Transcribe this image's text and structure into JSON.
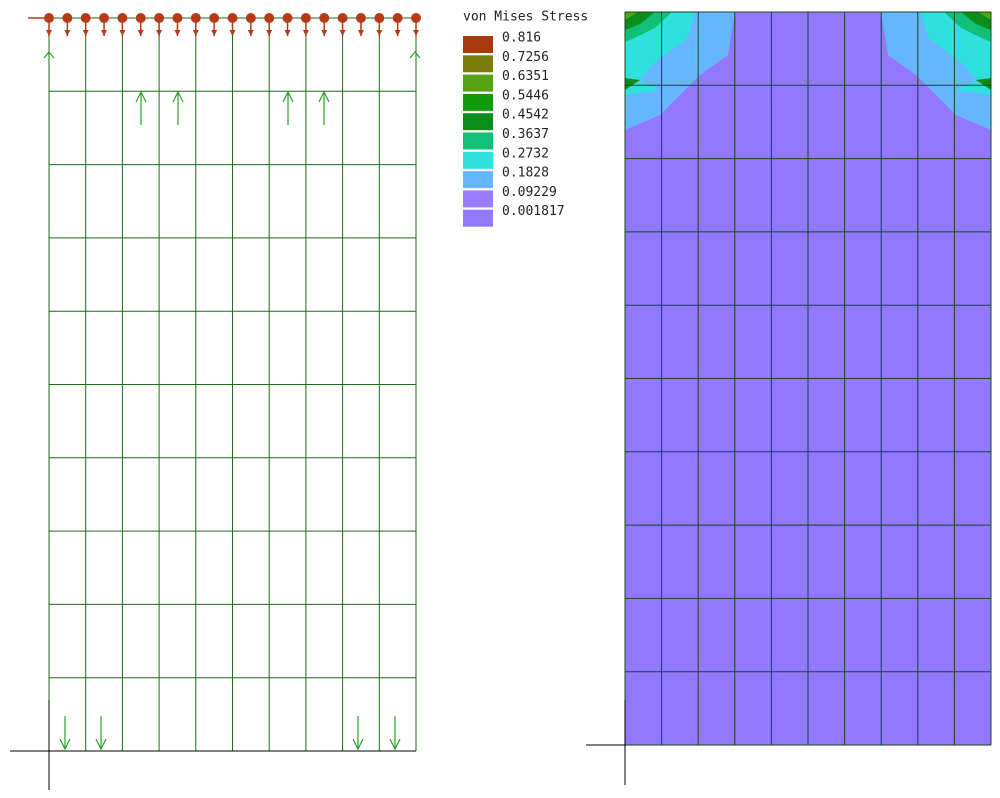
{
  "legend": {
    "title": "von Mises Stress",
    "entries": [
      {
        "label": "0.816",
        "color": "#a83a0c"
      },
      {
        "label": "0.7256",
        "color": "#7d7c0a"
      },
      {
        "label": "0.6351",
        "color": "#57a314"
      },
      {
        "label": "0.5446",
        "color": "#139a0a"
      },
      {
        "label": "0.4542",
        "color": "#0a8d1a"
      },
      {
        "label": "0.3637",
        "color": "#12bf78"
      },
      {
        "label": "0.2732",
        "color": "#2ee0de"
      },
      {
        "label": "0.1828",
        "color": "#66b6ff"
      },
      {
        "label": "0.09229",
        "color": "#9a7dff"
      },
      {
        "label": "0.001817",
        "color": "#9178ff"
      }
    ]
  }
}
